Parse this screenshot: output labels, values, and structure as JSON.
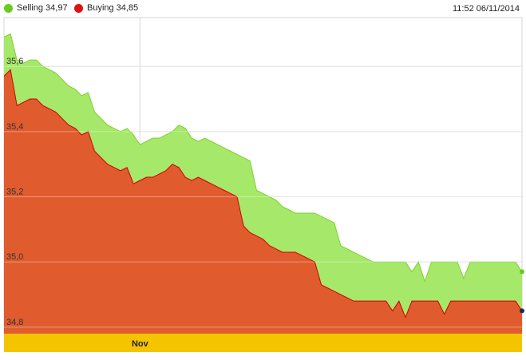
{
  "legend": {
    "selling_label": "Selling",
    "selling_value": "34,97",
    "buying_label": "Buying",
    "buying_value": "34,85"
  },
  "timestamp": "11:52 06/11/2014",
  "colors": {
    "selling": "#a6e86a",
    "selling_line": "#7fd12e",
    "selling_dot": "#66cc22",
    "buying": "#e05c2e",
    "buying_line": "#cc0000",
    "buying_dot": "#dd1111",
    "xbar": "#f5c400",
    "grid": "#d6d6d6"
  },
  "chart_data": {
    "type": "area",
    "title": "",
    "xlabel": "",
    "ylabel": "",
    "ylim": [
      34.78,
      35.75
    ],
    "y_ticks": [
      34.8,
      35.0,
      35.2,
      35.4,
      35.6
    ],
    "y_tick_labels": [
      "34,8",
      "35,0",
      "35,2",
      "35,4",
      "35,6"
    ],
    "x_labels": [
      {
        "label": "Nov",
        "index": 21
      }
    ],
    "grid": true,
    "legend_position": "top-left",
    "series": [
      {
        "name": "Selling",
        "values": [
          35.69,
          35.7,
          35.62,
          35.61,
          35.62,
          35.62,
          35.6,
          35.59,
          35.58,
          35.56,
          35.54,
          35.53,
          35.51,
          35.52,
          35.46,
          35.44,
          35.42,
          35.41,
          35.4,
          35.41,
          35.39,
          35.36,
          35.37,
          35.38,
          35.38,
          35.39,
          35.4,
          35.42,
          35.41,
          35.38,
          35.37,
          35.38,
          35.37,
          35.36,
          35.35,
          35.34,
          35.33,
          35.32,
          35.31,
          35.22,
          35.21,
          35.2,
          35.19,
          35.17,
          35.16,
          35.15,
          35.15,
          35.15,
          35.15,
          35.14,
          35.13,
          35.12,
          35.05,
          35.04,
          35.03,
          35.02,
          35.01,
          35.0,
          35.0,
          35.0,
          35.0,
          35.0,
          35.0,
          34.97,
          35.0,
          34.94,
          35.0,
          35.0,
          35.0,
          35.0,
          35.0,
          34.95,
          35.0,
          35.0,
          35.0,
          35.0,
          35.0,
          35.0,
          35.0,
          35.0,
          34.97
        ]
      },
      {
        "name": "Buying",
        "values": [
          35.57,
          35.59,
          35.48,
          35.49,
          35.5,
          35.5,
          35.48,
          35.47,
          35.46,
          35.44,
          35.42,
          35.41,
          35.39,
          35.4,
          35.34,
          35.32,
          35.3,
          35.29,
          35.28,
          35.29,
          35.24,
          35.25,
          35.26,
          35.26,
          35.27,
          35.28,
          35.3,
          35.29,
          35.26,
          35.25,
          35.26,
          35.25,
          35.24,
          35.23,
          35.22,
          35.21,
          35.2,
          35.11,
          35.09,
          35.08,
          35.07,
          35.05,
          35.04,
          35.03,
          35.03,
          35.03,
          35.02,
          35.01,
          35.0,
          34.93,
          34.92,
          34.91,
          34.9,
          34.89,
          34.88,
          34.88,
          34.88,
          34.88,
          34.88,
          34.88,
          34.85,
          34.88,
          34.83,
          34.88,
          34.88,
          34.88,
          34.88,
          34.88,
          34.84,
          34.88,
          34.88,
          34.88,
          34.88,
          34.88,
          34.88,
          34.88,
          34.88,
          34.88,
          34.88,
          34.88,
          34.85
        ]
      }
    ]
  }
}
